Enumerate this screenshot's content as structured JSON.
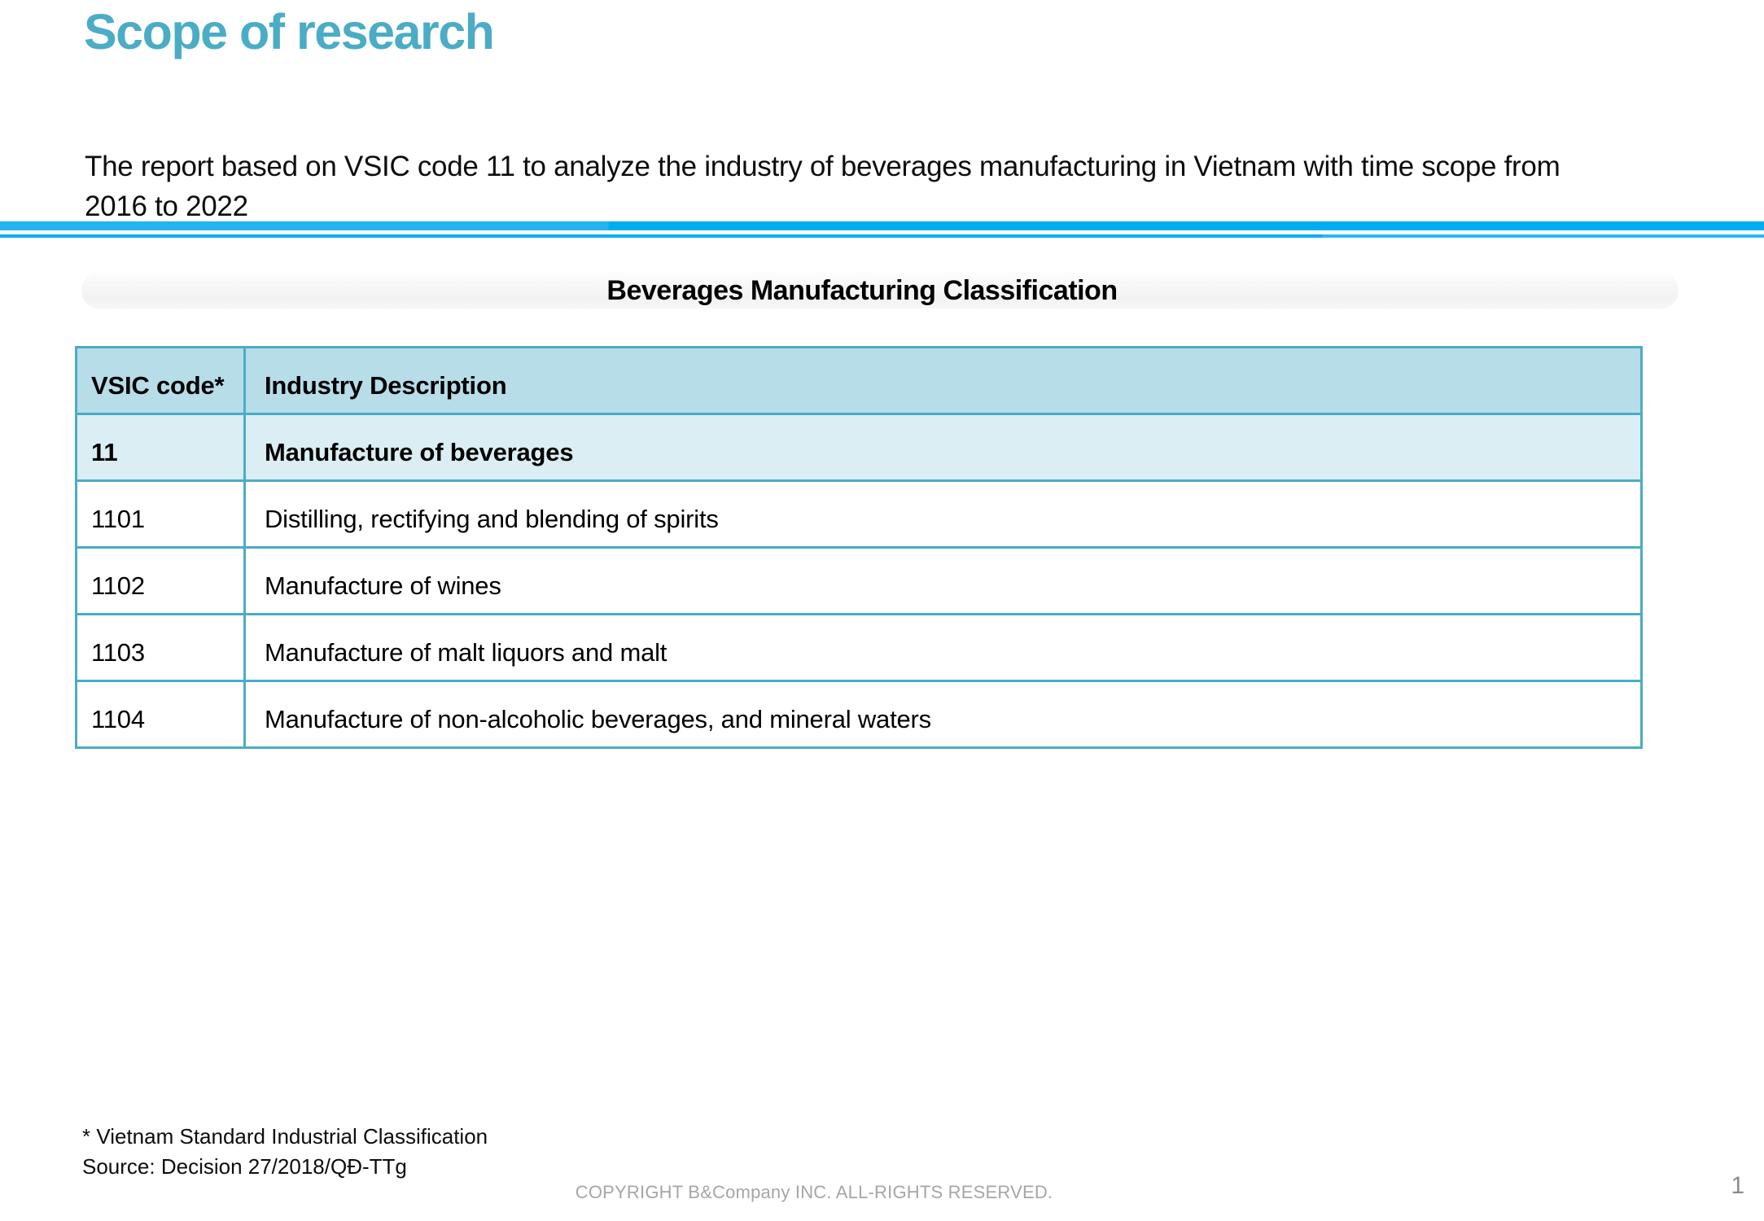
{
  "slide": {
    "title": "Scope of research",
    "intro_lines": {
      "line1": "The report based on VSIC code 11 to analyze the industry of beverages manufacturing in Vietnam with time scope from",
      "line2": "2016 to 2022"
    },
    "section_heading": "Beverages Manufacturing Classification",
    "footnotes": {
      "note1": "* Vietnam Standard Industrial Classification",
      "note2": "Source: Decision 27/2018/QĐ-TTg"
    },
    "copyright": "COPYRIGHT B&Company INC. ALL-RIGHTS RESERVED.",
    "page_number": "1"
  },
  "table": {
    "columns": {
      "code": "VSIC code*",
      "description": "Industry Description"
    },
    "rows": [
      {
        "code": "11",
        "description": "Manufacture of beverages",
        "emphasis": true
      },
      {
        "code": "1101",
        "description": "Distilling, rectifying and blending of spirits",
        "emphasis": false
      },
      {
        "code": "1102",
        "description": "Manufacture of wines",
        "emphasis": false
      },
      {
        "code": "1103",
        "description": "Manufacture of malt liquors and malt",
        "emphasis": false
      },
      {
        "code": "1104",
        "description": "Manufacture of non-alcoholic beverages, and mineral waters",
        "emphasis": false
      }
    ]
  },
  "colors": {
    "accent_teal": "#4BACC6",
    "table_header_fill": "#B6DDE8",
    "table_subheader_fill": "#DAEEF3",
    "divider_blue": "#00AEEF",
    "muted_gray": "#A6A6A6"
  }
}
